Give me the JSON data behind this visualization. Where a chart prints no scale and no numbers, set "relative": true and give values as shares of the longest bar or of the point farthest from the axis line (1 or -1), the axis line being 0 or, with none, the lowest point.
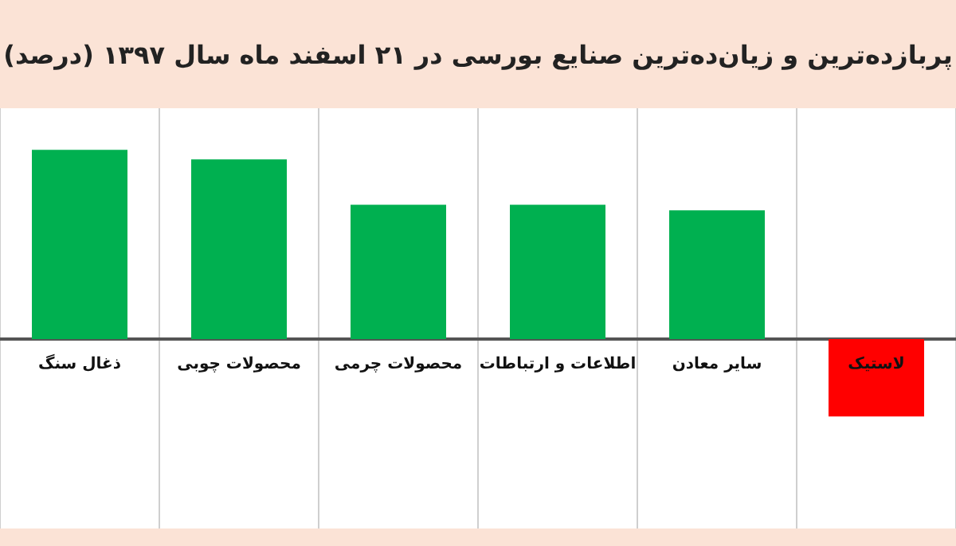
{
  "chart_data": {
    "type": "bar",
    "title": "پربازده‌ترین و زیان‌ده‌ترین صنایع بورسی در ۲۱ اسفند ماه سال ۱۳۹۷ (درصد)",
    "categories": [
      "ذغال سنگ",
      "محصولات چوبی",
      "محصولات چرمی",
      "اطلاعات و ارتباطات",
      "سایر معادن",
      "لاستیک"
    ],
    "values": [
      1,
      0.95,
      0.71,
      0.71,
      0.68,
      -0.41
    ],
    "colors": [
      "#00b050",
      "#00b050",
      "#00b050",
      "#00b050",
      "#00b050",
      "#ff0000"
    ],
    "relative": true,
    "grid": "x",
    "legend": false
  }
}
